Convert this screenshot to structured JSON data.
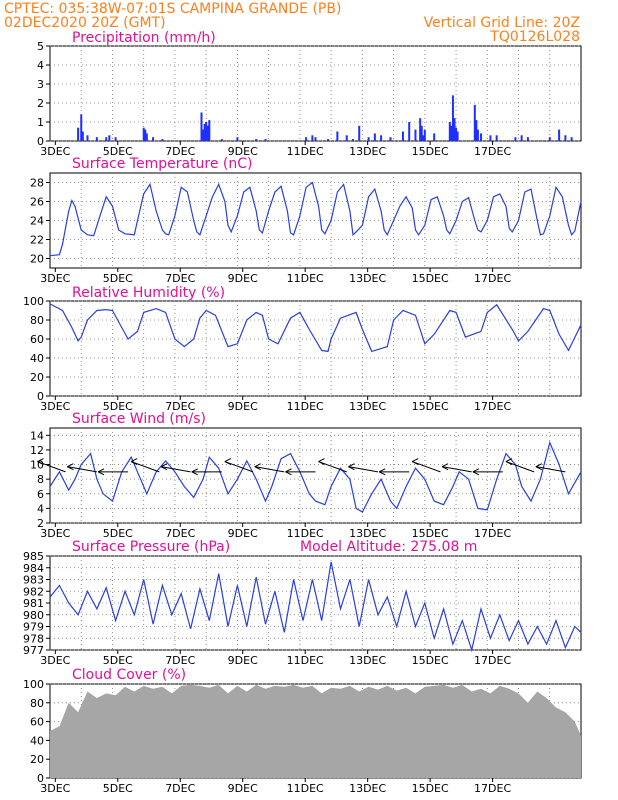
{
  "header": {
    "left_line1": "CPTEC:    035:38W-07:01S   CAMPINA GRANDE (PB)",
    "left_line2": "02DEC2020 20Z (GMT)",
    "right_line1": "Vertical Grid Line: 20Z",
    "right_line2": "TQ0126L028"
  },
  "x_axis": {
    "tick_labels": [
      "3DEC",
      "5DEC",
      "7DEC",
      "9DEC",
      "11DEC",
      "13DEC",
      "15DEC",
      "17DEC"
    ]
  },
  "colors": {
    "line": "#2a3fe0",
    "bars": "#1f2fff",
    "cloud": "#a6a6a6",
    "title": "#e0109a",
    "header": "#ff7f1a",
    "arrow": "#000000"
  },
  "panels": {
    "precip": {
      "title": "Precipitation  (mm/h)",
      "ylim": [
        0,
        5
      ],
      "yticks": [
        0,
        1,
        2,
        3,
        4,
        5
      ]
    },
    "temp": {
      "title": "Surface  Temperature  (nC)",
      "ylim": [
        19,
        29
      ],
      "yticks": [
        20,
        22,
        24,
        26,
        28
      ]
    },
    "rh": {
      "title": "Relative  Humidity  (%)",
      "ylim": [
        0,
        100
      ],
      "yticks": [
        0,
        20,
        40,
        60,
        80,
        100
      ]
    },
    "wind": {
      "title": "Surface  Wind  (m/s)",
      "ylim": [
        2,
        15
      ],
      "yticks": [
        2,
        4,
        6,
        8,
        10,
        12,
        14
      ]
    },
    "pres": {
      "title": "Surface  Pressure  (hPa)",
      "extra": "Model  Altitude:  275.08  m",
      "ylim": [
        977,
        985
      ],
      "yticks": [
        977,
        978,
        979,
        980,
        981,
        982,
        983,
        984,
        985
      ]
    },
    "cloud": {
      "title": "Cloud  Cover  (%)",
      "ylim": [
        0,
        100
      ],
      "yticks": [
        0,
        20,
        40,
        60,
        80,
        100
      ]
    }
  },
  "chart_data": [
    {
      "type": "bar",
      "title": "Precipitation  (mm/h)",
      "ylim": [
        0,
        5
      ],
      "x_unit": "days since 02DEC2020 20Z",
      "x": [
        0.9,
        1.0,
        1.05,
        1.2,
        1.5,
        1.8,
        1.9,
        2.1,
        3.0,
        3.05,
        3.1,
        3.3,
        3.6,
        4.85,
        4.9,
        4.95,
        5.0,
        5.05,
        5.1,
        5.5,
        6.0,
        6.6,
        6.9,
        8.2,
        8.4,
        8.5,
        8.9,
        9.2,
        9.5,
        9.7,
        9.9,
        10.2,
        10.4,
        10.6,
        10.9,
        11.3,
        11.5,
        11.7,
        11.85,
        11.9,
        11.95,
        12.0,
        12.3,
        12.8,
        12.85,
        12.9,
        12.95,
        13.0,
        13.05,
        13.6,
        13.65,
        13.7,
        13.8,
        14.1,
        14.3,
        14.9,
        15.1,
        15.3,
        16.0,
        16.3,
        16.5,
        16.7
      ],
      "values": [
        0.7,
        1.4,
        0.5,
        0.3,
        0.2,
        0.2,
        0.3,
        0.2,
        0.7,
        0.6,
        0.4,
        0.2,
        0.1,
        1.5,
        0.6,
        0.9,
        1.0,
        0.8,
        1.1,
        0.1,
        0.2,
        0.1,
        0.1,
        0.2,
        0.3,
        0.2,
        0.1,
        0.5,
        0.3,
        0.1,
        0.8,
        0.2,
        0.4,
        0.3,
        0.2,
        0.5,
        1.0,
        0.6,
        1.2,
        0.8,
        0.3,
        0.6,
        0.4,
        1.0,
        0.8,
        2.4,
        1.2,
        0.7,
        0.5,
        1.9,
        1.1,
        0.6,
        0.4,
        0.3,
        0.3,
        0.2,
        0.3,
        0.2,
        0.2,
        0.6,
        0.3,
        0.2
      ]
    },
    {
      "type": "line",
      "title": "Surface  Temperature  (nC)",
      "ylim": [
        19,
        29
      ],
      "x": [
        0,
        0.3,
        0.4,
        0.6,
        0.7,
        0.8,
        1.0,
        1.2,
        1.4,
        1.6,
        1.8,
        2.0,
        2.2,
        2.4,
        2.7,
        2.8,
        3.0,
        3.2,
        3.4,
        3.6,
        3.7,
        3.8,
        4.0,
        4.2,
        4.4,
        4.6,
        4.7,
        4.8,
        5.0,
        5.2,
        5.4,
        5.6,
        5.7,
        5.8,
        6.0,
        6.2,
        6.4,
        6.6,
        6.7,
        6.8,
        7.0,
        7.2,
        7.4,
        7.6,
        7.7,
        7.8,
        8.0,
        8.2,
        8.4,
        8.6,
        8.7,
        8.8,
        9.0,
        9.2,
        9.4,
        9.6,
        9.7,
        9.8,
        10.0,
        10.2,
        10.4,
        10.6,
        10.7,
        10.8,
        11.0,
        11.2,
        11.4,
        11.6,
        11.7,
        11.8,
        12.0,
        12.2,
        12.4,
        12.6,
        12.7,
        12.8,
        13.0,
        13.2,
        13.4,
        13.6,
        13.7,
        13.8,
        14.0,
        14.2,
        14.4,
        14.6,
        14.7,
        14.8,
        15.0,
        15.2,
        15.4,
        15.6,
        15.7,
        15.8,
        16.0,
        16.2,
        16.4,
        16.6,
        16.7,
        16.8,
        17.0
      ],
      "values": [
        20.3,
        20.4,
        21.5,
        25.0,
        26.1,
        25.5,
        23.0,
        22.5,
        22.4,
        24.5,
        26.5,
        25.5,
        23.0,
        22.6,
        22.5,
        24.0,
        26.8,
        27.8,
        25.0,
        23.0,
        22.6,
        22.5,
        24.5,
        27.5,
        27.0,
        24.0,
        22.8,
        22.5,
        24.5,
        26.5,
        27.8,
        26.0,
        23.5,
        22.8,
        24.5,
        27.0,
        27.5,
        25.0,
        23.0,
        22.7,
        25.0,
        27.0,
        27.6,
        25.0,
        22.7,
        22.5,
        24.5,
        27.5,
        28.0,
        25.5,
        23.0,
        22.6,
        24.0,
        27.0,
        27.8,
        25.0,
        22.5,
        22.8,
        23.5,
        26.5,
        27.3,
        25.0,
        23.0,
        22.5,
        24.0,
        25.5,
        26.5,
        25.3,
        23.0,
        22.5,
        23.5,
        26.2,
        26.5,
        24.5,
        23.0,
        22.6,
        24.0,
        26.0,
        26.4,
        24.0,
        23.0,
        22.8,
        24.0,
        26.5,
        26.8,
        25.5,
        23.2,
        22.8,
        24.0,
        27.0,
        27.3,
        24.0,
        22.5,
        22.6,
        24.5,
        27.5,
        26.5,
        23.5,
        22.5,
        22.9,
        26.0
      ]
    },
    {
      "type": "line",
      "title": "Relative  Humidity  (%)",
      "ylim": [
        0,
        100
      ],
      "x": [
        0,
        0.4,
        0.7,
        0.9,
        1.0,
        1.2,
        1.5,
        1.8,
        2.0,
        2.3,
        2.5,
        2.8,
        3.0,
        3.4,
        3.7,
        4.0,
        4.3,
        4.6,
        4.8,
        5.0,
        5.3,
        5.7,
        6.0,
        6.3,
        6.6,
        6.8,
        7.0,
        7.3,
        7.7,
        8.0,
        8.3,
        8.7,
        8.9,
        9.0,
        9.3,
        9.8,
        10.0,
        10.3,
        10.8,
        11.0,
        11.3,
        11.7,
        12.0,
        12.3,
        12.8,
        13.0,
        13.3,
        13.8,
        14.0,
        14.3,
        14.8,
        15.0,
        15.3,
        15.8,
        16.0,
        16.3,
        16.6,
        17.0
      ],
      "values": [
        97,
        90,
        72,
        58,
        62,
        80,
        90,
        91,
        90,
        72,
        60,
        68,
        88,
        92,
        88,
        60,
        52,
        60,
        82,
        90,
        85,
        52,
        55,
        80,
        88,
        85,
        60,
        55,
        82,
        88,
        70,
        48,
        47,
        60,
        82,
        88,
        70,
        47,
        52,
        80,
        90,
        85,
        55,
        65,
        90,
        88,
        62,
        68,
        88,
        96,
        70,
        58,
        68,
        92,
        90,
        65,
        48,
        75
      ]
    },
    {
      "type": "line",
      "title": "Surface  Wind  (m/s)",
      "ylim": [
        2,
        15
      ],
      "x": [
        0,
        0.3,
        0.6,
        0.8,
        1.0,
        1.3,
        1.5,
        1.7,
        2.0,
        2.3,
        2.6,
        2.9,
        3.1,
        3.4,
        3.7,
        4.0,
        4.3,
        4.6,
        4.9,
        5.1,
        5.4,
        5.7,
        6.0,
        6.3,
        6.6,
        6.9,
        7.1,
        7.4,
        7.7,
        8.0,
        8.3,
        8.5,
        8.8,
        9.0,
        9.3,
        9.6,
        9.8,
        10.0,
        10.3,
        10.6,
        10.9,
        11.1,
        11.4,
        11.7,
        12.0,
        12.3,
        12.6,
        12.9,
        13.1,
        13.4,
        13.7,
        14.0,
        14.3,
        14.6,
        14.9,
        15.1,
        15.4,
        15.7,
        16.0,
        16.3,
        16.6,
        17.0
      ],
      "values": [
        7,
        9,
        6.5,
        8,
        10,
        11.5,
        8,
        6,
        5,
        9,
        11,
        8,
        6,
        9,
        10.5,
        9,
        7,
        5.5,
        8,
        11,
        9.5,
        6,
        8,
        10.5,
        8,
        5,
        7,
        10.8,
        11.5,
        9,
        6,
        5,
        4.5,
        7,
        9.5,
        8,
        4,
        3.5,
        6,
        8,
        5,
        4,
        7,
        9.5,
        8,
        5,
        4.5,
        7,
        9,
        8,
        4,
        3.8,
        8,
        11.5,
        10,
        7,
        5,
        8,
        13,
        10,
        6,
        9
      ]
    },
    {
      "type": "line",
      "title": "Surface  Pressure  (hPa)",
      "ylim": [
        977,
        985
      ],
      "x": [
        0,
        0.3,
        0.6,
        0.9,
        1.2,
        1.5,
        1.8,
        2.1,
        2.4,
        2.7,
        3.0,
        3.3,
        3.6,
        3.9,
        4.2,
        4.5,
        4.8,
        5.1,
        5.4,
        5.7,
        6.0,
        6.3,
        6.6,
        6.9,
        7.2,
        7.5,
        7.8,
        8.1,
        8.4,
        8.7,
        9.0,
        9.3,
        9.6,
        9.9,
        10.2,
        10.5,
        10.8,
        11.1,
        11.4,
        11.7,
        12.0,
        12.3,
        12.6,
        12.9,
        13.2,
        13.5,
        13.8,
        14.1,
        14.4,
        14.7,
        15.0,
        15.3,
        15.6,
        15.9,
        16.2,
        16.5,
        16.8,
        17.0
      ],
      "values": [
        981.5,
        982.5,
        981.0,
        980.0,
        982.0,
        980.5,
        982.3,
        979.5,
        982.0,
        980.0,
        983.0,
        979.2,
        982.5,
        980.0,
        981.8,
        978.8,
        982.2,
        979.5,
        983.5,
        979.0,
        982.5,
        979.0,
        983.2,
        979.2,
        982.0,
        978.5,
        983.0,
        979.5,
        983.0,
        979.5,
        984.5,
        980.5,
        983.0,
        979.0,
        983.0,
        980.0,
        981.5,
        979.0,
        982.0,
        979.0,
        981.0,
        978.0,
        980.5,
        977.5,
        979.5,
        977.0,
        980.5,
        978.0,
        980.0,
        977.8,
        979.5,
        977.5,
        979.0,
        977.5,
        979.5,
        977.2,
        979.0,
        978.5
      ]
    },
    {
      "type": "area",
      "title": "Cloud  Cover  (%)",
      "ylim": [
        0,
        100
      ],
      "x": [
        0,
        0.3,
        0.6,
        0.9,
        1.2,
        1.5,
        1.8,
        2.1,
        2.4,
        2.7,
        3.0,
        3.3,
        3.6,
        3.9,
        4.2,
        4.5,
        4.8,
        5.1,
        5.4,
        5.7,
        6.0,
        6.3,
        6.6,
        6.9,
        7.2,
        7.5,
        7.8,
        8.1,
        8.4,
        8.7,
        9.0,
        9.3,
        9.6,
        9.9,
        10.2,
        10.5,
        10.8,
        11.1,
        11.4,
        11.7,
        12.0,
        12.3,
        12.6,
        12.9,
        13.2,
        13.5,
        13.8,
        14.1,
        14.4,
        14.7,
        15.0,
        15.3,
        15.6,
        15.9,
        16.2,
        16.5,
        16.8,
        17.0
      ],
      "values": [
        50,
        55,
        80,
        70,
        92,
        85,
        90,
        88,
        97,
        92,
        98,
        95,
        97,
        90,
        98,
        99,
        98,
        96,
        99,
        90,
        98,
        92,
        99,
        95,
        98,
        97,
        99,
        96,
        98,
        90,
        96,
        95,
        98,
        92,
        97,
        94,
        98,
        93,
        96,
        90,
        97,
        98,
        99,
        96,
        99,
        92,
        95,
        90,
        98,
        95,
        90,
        80,
        92,
        85,
        75,
        70,
        60,
        45
      ]
    }
  ]
}
